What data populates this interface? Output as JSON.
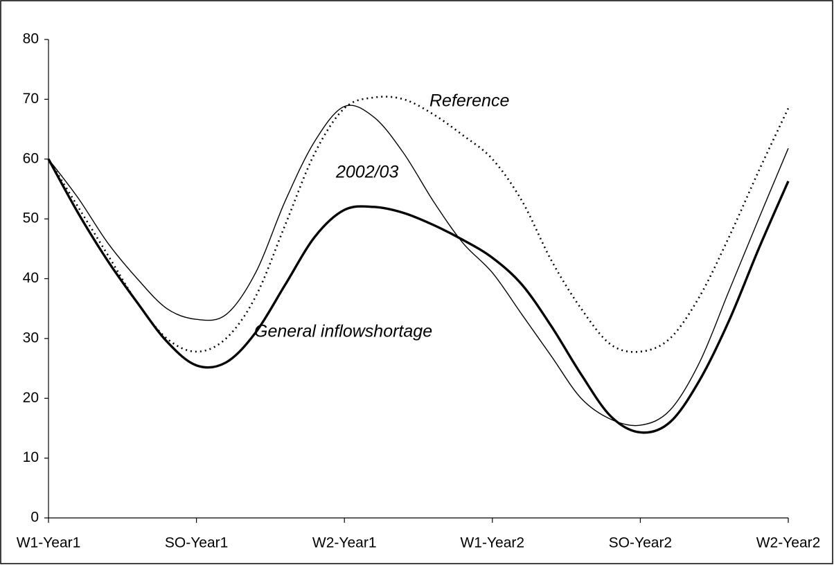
{
  "chart_data": {
    "type": "line",
    "categories": [
      "W1-Year1",
      null,
      null,
      null,
      null,
      "SO-Year1",
      null,
      null,
      null,
      null,
      "W2-Year1",
      null,
      null,
      null,
      null,
      "W1-Year2",
      null,
      null,
      null,
      null,
      "SO-Year2",
      null,
      null,
      null,
      null,
      "W2-Year2"
    ],
    "series": [
      {
        "name": "Reference",
        "color": "#000000",
        "values": [
          60,
          52,
          44,
          36,
          30,
          27.8,
          30,
          37,
          49,
          61,
          68.5,
          70.3,
          70,
          67.5,
          64,
          60,
          53,
          43,
          35,
          29,
          27.8,
          30,
          37,
          47,
          58,
          68.5
        ]
      },
      {
        "name": "2002/03",
        "color": "#000000",
        "values": [
          60,
          53.5,
          46,
          40,
          35,
          33.2,
          34,
          41,
          53,
          63,
          68.8,
          67,
          61,
          53,
          46,
          41,
          34,
          27,
          20,
          16.5,
          15.5,
          18,
          26,
          38,
          50,
          61.8
        ]
      },
      {
        "name": "General inflowshortage",
        "color": "#000000",
        "values": [
          60,
          51,
          43,
          36,
          29.5,
          25.5,
          26,
          31,
          39,
          47,
          51.5,
          52,
          51,
          49,
          46.5,
          43.5,
          39,
          32,
          24,
          17,
          14.3,
          16,
          23,
          33,
          45,
          56.3
        ]
      }
    ],
    "ylim": [
      0,
      80
    ],
    "yticks": [
      0,
      10,
      20,
      30,
      40,
      50,
      60,
      70,
      80
    ],
    "grid": false
  }
}
